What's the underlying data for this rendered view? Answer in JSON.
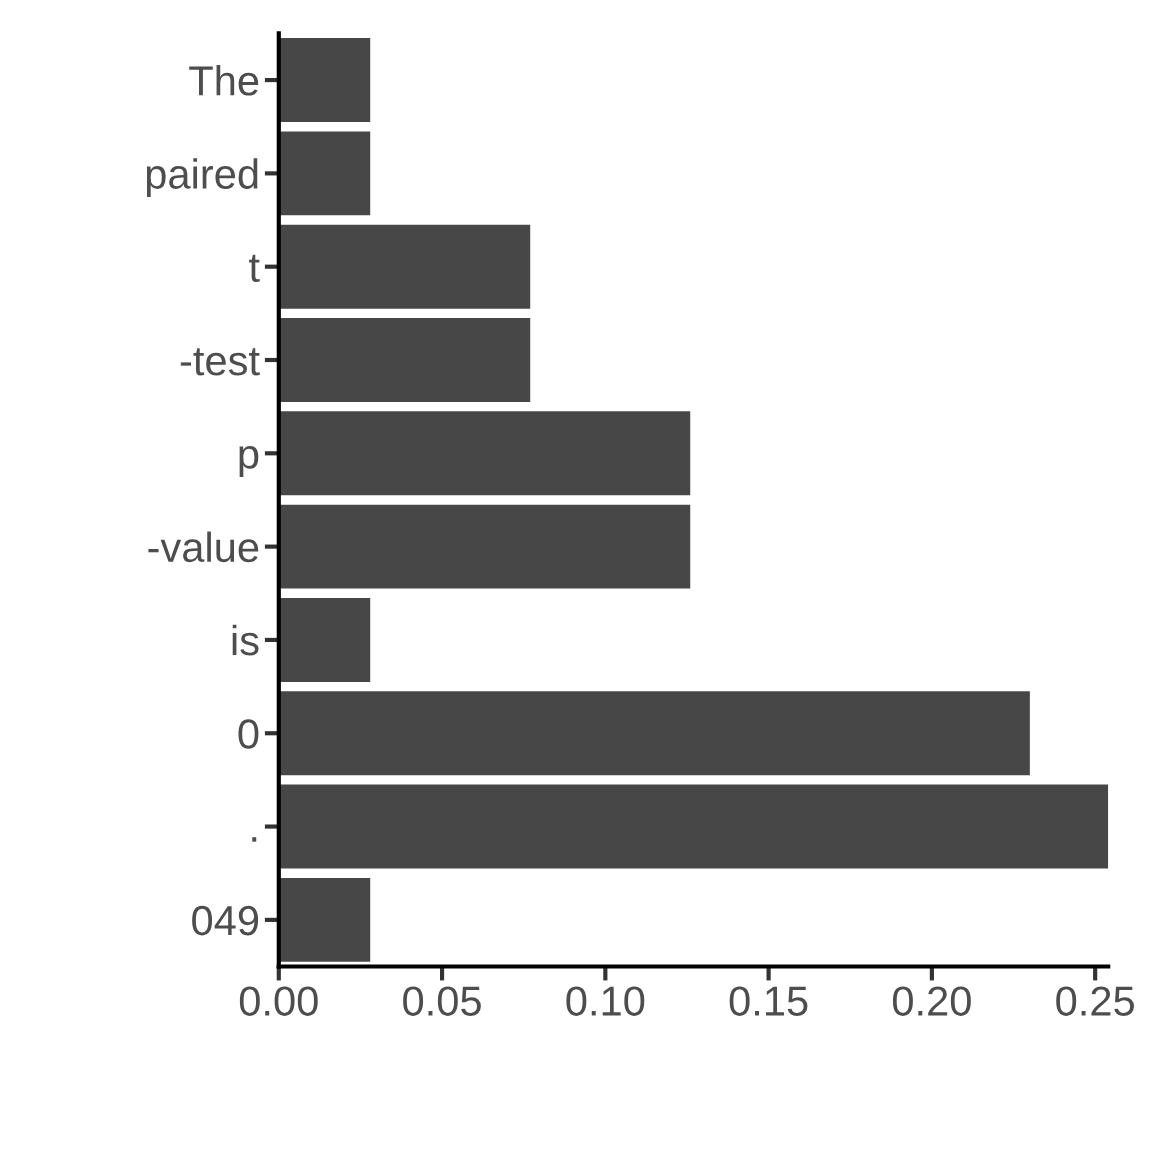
{
  "chart_data": {
    "type": "bar",
    "orientation": "horizontal",
    "categories": [
      "The",
      "paired",
      "t",
      "-test",
      "p",
      "-value",
      "is",
      "0",
      ".",
      "049"
    ],
    "values": [
      0.028,
      0.028,
      0.077,
      0.077,
      0.126,
      0.126,
      0.028,
      0.23,
      0.254,
      0.028
    ],
    "color": "#474747",
    "xlim": [
      0,
      0.254
    ],
    "xticks": [
      {
        "value": 0,
        "label": "0.00"
      },
      {
        "value": 0.05,
        "label": "0.05"
      },
      {
        "value": 0.1,
        "label": "0.10"
      },
      {
        "value": 0.15,
        "label": "0.15"
      },
      {
        "value": 0.2,
        "label": "0.20"
      },
      {
        "value": 0.25,
        "label": "0.25"
      }
    ],
    "grid": false
  }
}
